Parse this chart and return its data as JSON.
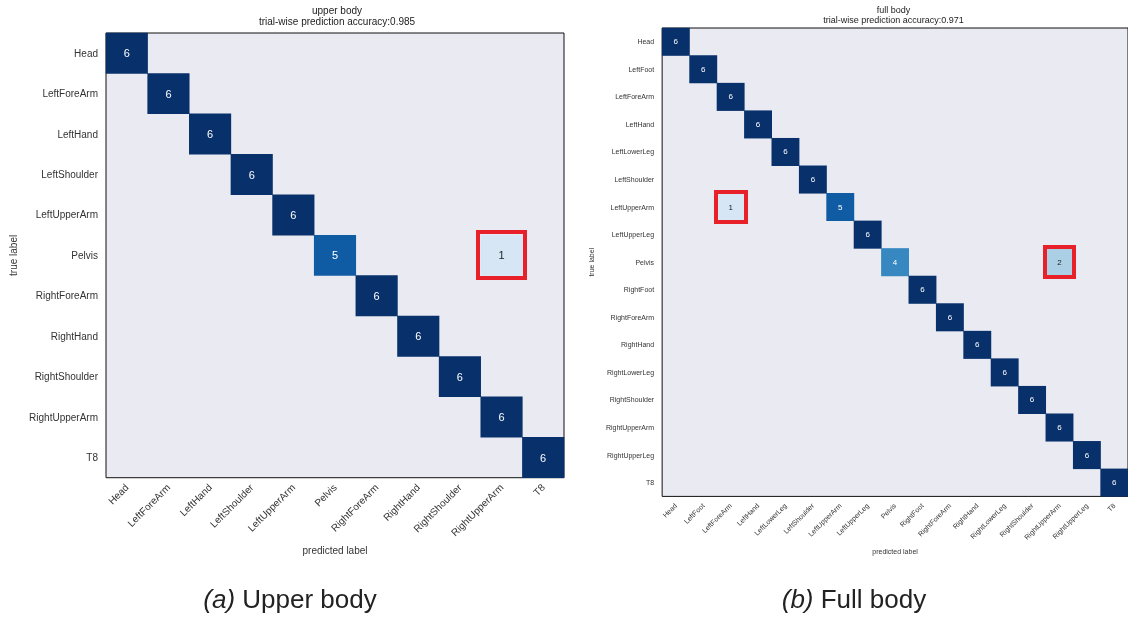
{
  "chart_data": [
    {
      "type": "heatmap",
      "data_labels": true,
      "title": "upper body",
      "subtitle": "trial-wise prediction accuracy:0.985",
      "xlabel": "predicted label",
      "ylabel": "true label",
      "categories": [
        "Head",
        "LeftForeArm",
        "LeftHand",
        "LeftShoulder",
        "LeftUpperArm",
        "Pelvis",
        "RightForeArm",
        "RightHand",
        "RightShoulder",
        "RightUpperArm",
        "T8"
      ],
      "y_categories": [
        "Head",
        "LeftForeArm",
        "LeftHand",
        "LeftShoulder",
        "LeftUpperArm",
        "Pelvis",
        "RightForeArm",
        "RightHand",
        "RightShoulder",
        "RightUpperArm",
        "T8"
      ],
      "cells": [
        [
          6,
          null,
          null,
          null,
          null,
          null,
          null,
          null,
          null,
          null,
          null
        ],
        [
          null,
          6,
          null,
          null,
          null,
          null,
          null,
          null,
          null,
          null,
          null
        ],
        [
          null,
          null,
          6,
          null,
          null,
          null,
          null,
          null,
          null,
          null,
          null
        ],
        [
          null,
          null,
          null,
          6,
          null,
          null,
          null,
          null,
          null,
          null,
          null
        ],
        [
          null,
          null,
          null,
          null,
          6,
          null,
          null,
          null,
          null,
          null,
          null
        ],
        [
          null,
          null,
          null,
          null,
          null,
          5,
          null,
          null,
          null,
          1,
          null
        ],
        [
          null,
          null,
          null,
          null,
          null,
          null,
          6,
          null,
          null,
          null,
          null
        ],
        [
          null,
          null,
          null,
          null,
          null,
          null,
          null,
          6,
          null,
          null,
          null
        ],
        [
          null,
          null,
          null,
          null,
          null,
          null,
          null,
          null,
          6,
          null,
          null
        ],
        [
          null,
          null,
          null,
          null,
          null,
          null,
          null,
          null,
          null,
          6,
          null
        ],
        [
          null,
          null,
          null,
          null,
          null,
          null,
          null,
          null,
          null,
          null,
          6
        ]
      ],
      "annotations": [
        "(a) Upper body"
      ]
    },
    {
      "type": "heatmap",
      "data_labels": true,
      "title": "full body",
      "subtitle": "trial-wise prediction accuracy:0.971",
      "xlabel": "predicted label",
      "ylabel": "true label",
      "categories": [
        "Head",
        "LeftFoot",
        "LeftForeArm",
        "LeftHand",
        "LeftLowerLeg",
        "LeftShoulder",
        "LeftUpperArm",
        "LeftUpperLeg",
        "Pelvis",
        "RightFoot",
        "RightForeArm",
        "RightHand",
        "RightLowerLeg",
        "RightShoulder",
        "RightUpperArm",
        "RightUpperLeg",
        "T8"
      ],
      "y_categories": [
        "Head",
        "LeftFoot",
        "LeftForeArm",
        "LeftHand",
        "LeftLowerLeg",
        "LeftShoulder",
        "LeftUpperArm",
        "LeftUpperLeg",
        "Pelvis",
        "RightFoot",
        "RightForeArm",
        "RightHand",
        "RightLowerLeg",
        "RightShoulder",
        "RightUpperArm",
        "RightUpperLeg",
        "T8"
      ],
      "cells": [
        [
          6,
          null,
          null,
          null,
          null,
          null,
          null,
          null,
          null,
          null,
          null,
          null,
          null,
          null,
          null,
          null,
          null
        ],
        [
          null,
          6,
          null,
          null,
          null,
          null,
          null,
          null,
          null,
          null,
          null,
          null,
          null,
          null,
          null,
          null,
          null
        ],
        [
          null,
          null,
          6,
          null,
          null,
          null,
          null,
          null,
          null,
          null,
          null,
          null,
          null,
          null,
          null,
          null,
          null
        ],
        [
          null,
          null,
          null,
          6,
          null,
          null,
          null,
          null,
          null,
          null,
          null,
          null,
          null,
          null,
          null,
          null,
          null
        ],
        [
          null,
          null,
          null,
          null,
          6,
          null,
          null,
          null,
          null,
          null,
          null,
          null,
          null,
          null,
          null,
          null,
          null
        ],
        [
          null,
          null,
          null,
          null,
          null,
          6,
          null,
          null,
          null,
          null,
          null,
          null,
          null,
          null,
          null,
          null,
          null
        ],
        [
          null,
          null,
          1,
          null,
          null,
          null,
          5,
          null,
          null,
          null,
          null,
          null,
          null,
          null,
          null,
          null,
          null
        ],
        [
          null,
          null,
          null,
          null,
          null,
          null,
          null,
          6,
          null,
          null,
          null,
          null,
          null,
          null,
          null,
          null,
          null
        ],
        [
          null,
          null,
          null,
          null,
          null,
          null,
          null,
          null,
          4,
          null,
          null,
          null,
          null,
          null,
          2,
          null,
          null
        ],
        [
          null,
          null,
          null,
          null,
          null,
          null,
          null,
          null,
          null,
          6,
          null,
          null,
          null,
          null,
          null,
          null,
          null
        ],
        [
          null,
          null,
          null,
          null,
          null,
          null,
          null,
          null,
          null,
          null,
          6,
          null,
          null,
          null,
          null,
          null,
          null
        ],
        [
          null,
          null,
          null,
          null,
          null,
          null,
          null,
          null,
          null,
          null,
          null,
          6,
          null,
          null,
          null,
          null,
          null
        ],
        [
          null,
          null,
          null,
          null,
          null,
          null,
          null,
          null,
          null,
          null,
          null,
          null,
          6,
          null,
          null,
          null,
          null
        ],
        [
          null,
          null,
          null,
          null,
          null,
          null,
          null,
          null,
          null,
          null,
          null,
          null,
          null,
          6,
          null,
          null,
          null
        ],
        [
          null,
          null,
          null,
          null,
          null,
          null,
          null,
          null,
          null,
          null,
          null,
          null,
          null,
          null,
          6,
          null,
          null
        ],
        [
          null,
          null,
          null,
          null,
          null,
          null,
          null,
          null,
          null,
          null,
          null,
          null,
          null,
          null,
          null,
          6,
          null
        ],
        [
          null,
          null,
          null,
          null,
          null,
          null,
          null,
          null,
          null,
          null,
          null,
          null,
          null,
          null,
          null,
          null,
          6
        ]
      ],
      "annotations": [
        "(b) Full body"
      ]
    }
  ]
}
